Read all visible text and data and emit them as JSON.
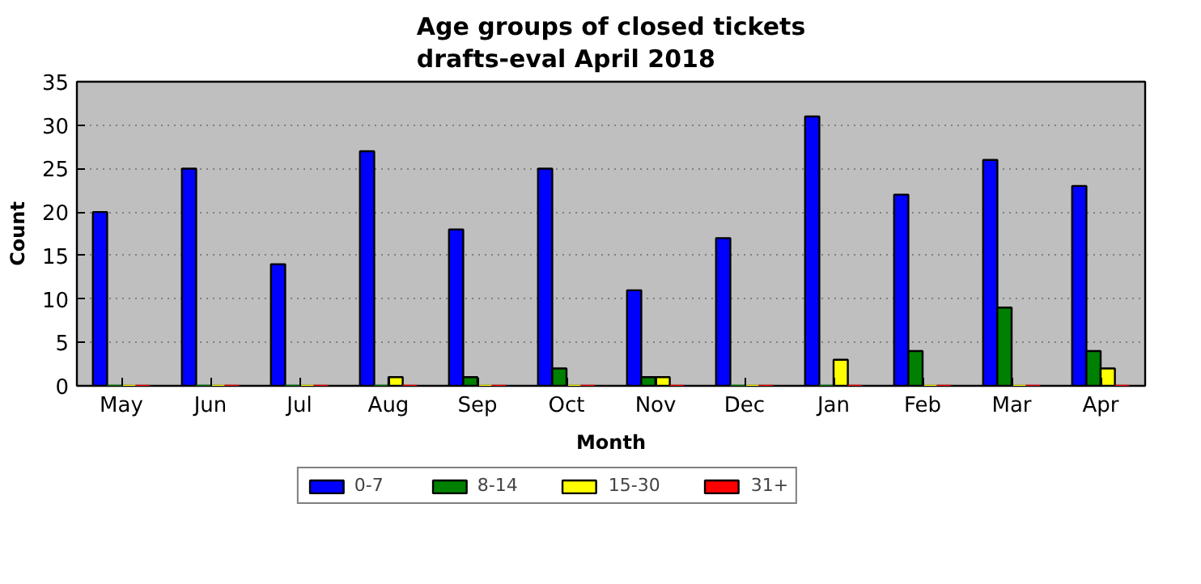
{
  "chart_data": {
    "type": "bar",
    "title": "Age groups of closed tickets\ndrafts-eval April 2018",
    "xlabel": "Month",
    "ylabel": "Count",
    "categories": [
      "May",
      "Jun",
      "Jul",
      "Aug",
      "Sep",
      "Oct",
      "Nov",
      "Dec",
      "Jan",
      "Feb",
      "Mar",
      "Apr"
    ],
    "series": [
      {
        "name": "0-7",
        "color": "#0000ff",
        "values": [
          20,
          25,
          14,
          27,
          18,
          25,
          11,
          17,
          31,
          22,
          26,
          23
        ]
      },
      {
        "name": "8-14",
        "color": "#008000",
        "values": [
          0,
          0,
          0,
          0,
          1,
          2,
          1,
          0,
          0,
          4,
          9,
          4
        ]
      },
      {
        "name": "15-30",
        "color": "#ffff00",
        "values": [
          0,
          0,
          0,
          1,
          0,
          0,
          1,
          0,
          3,
          0,
          0,
          2
        ]
      },
      {
        "name": "31+",
        "color": "#ff0000",
        "values": [
          0,
          0,
          0,
          0,
          0,
          0,
          0,
          0,
          0,
          0,
          0,
          0
        ]
      }
    ],
    "ylim": [
      0,
      35
    ],
    "yticks": [
      0,
      5,
      10,
      15,
      20,
      25,
      30,
      35
    ],
    "grid": "y",
    "legend": "bottom"
  }
}
